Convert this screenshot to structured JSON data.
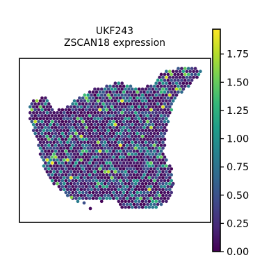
{
  "chart_data": {
    "type": "scatter",
    "subtype": "spatial-hex-spot-map",
    "title_lines": [
      "UKF243",
      "ZSCAN18 expression"
    ],
    "xlabel": "",
    "ylabel": "",
    "colormap": "viridis",
    "colormap_stops": [
      "#440154",
      "#482878",
      "#3e4989",
      "#31688e",
      "#26828e",
      "#1f9e89",
      "#35b779",
      "#6ece58",
      "#b5de2b",
      "#fde725"
    ],
    "color_range": [
      0,
      1.97
    ],
    "colorbar_ticks": [
      "0.00",
      "0.25",
      "0.50",
      "0.75",
      "1.00",
      "1.25",
      "1.50",
      "1.75"
    ],
    "colorbar_tick_values": [
      0,
      0.25,
      0.5,
      0.75,
      1.0,
      1.25,
      1.5,
      1.75
    ],
    "legend": "colorbar-right",
    "grid": false,
    "axes_visible": false,
    "spot_value_distribution": "mostly low (0–0.5) with scattered higher values up to ~1.97",
    "tissue_region": "irregular tissue section, wide band with an upward spur at the top-right"
  }
}
